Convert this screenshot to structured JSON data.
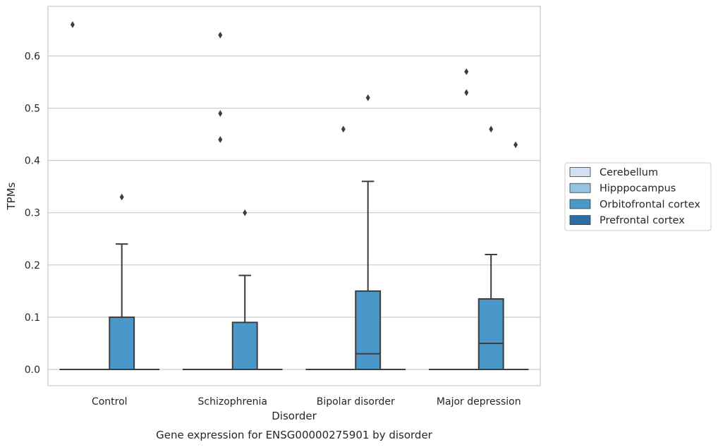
{
  "chart_data": {
    "type": "box",
    "title": "Gene expression for ENSG00000275901 by disorder",
    "xlabel": "Disorder",
    "ylabel": "TPMs",
    "ylim": [
      -0.032,
      0.695
    ],
    "yticks": [
      "0.0",
      "0.1",
      "0.2",
      "0.3",
      "0.4",
      "0.5",
      "0.6"
    ],
    "ytick_values": [
      0,
      0.1,
      0.2,
      0.3,
      0.4,
      0.5,
      0.6
    ],
    "grid": true,
    "legend_position": "right",
    "categories": [
      "Control",
      "Schizophrenia",
      "Bipolar disorder",
      "Major depression"
    ],
    "series": [
      {
        "name": "Cerebellum",
        "color": "#d0e1f2",
        "boxes": [
          {
            "category": "Control",
            "q1": 0,
            "median": 0,
            "q3": 0,
            "whisker_low": 0,
            "whisker_high": 0,
            "outliers": [
              0.66
            ]
          },
          {
            "category": "Schizophrenia",
            "q1": 0,
            "median": 0,
            "q3": 0,
            "whisker_low": 0,
            "whisker_high": 0,
            "outliers": []
          },
          {
            "category": "Bipolar disorder",
            "q1": 0,
            "median": 0,
            "q3": 0,
            "whisker_low": 0,
            "whisker_high": 0,
            "outliers": []
          },
          {
            "category": "Major depression",
            "q1": 0,
            "median": 0,
            "q3": 0,
            "whisker_low": 0,
            "whisker_high": 0,
            "outliers": []
          }
        ]
      },
      {
        "name": "Hipppocampus",
        "color": "#94c4df",
        "boxes": [
          {
            "category": "Control",
            "q1": 0,
            "median": 0,
            "q3": 0,
            "whisker_low": 0,
            "whisker_high": 0,
            "outliers": []
          },
          {
            "category": "Schizophrenia",
            "q1": 0,
            "median": 0,
            "q3": 0,
            "whisker_low": 0,
            "whisker_high": 0,
            "outliers": [
              0.64,
              0.49,
              0.44
            ]
          },
          {
            "category": "Bipolar disorder",
            "q1": 0,
            "median": 0,
            "q3": 0,
            "whisker_low": 0,
            "whisker_high": 0,
            "outliers": [
              0.46
            ]
          },
          {
            "category": "Major depression",
            "q1": 0,
            "median": 0,
            "q3": 0,
            "whisker_low": 0,
            "whisker_high": 0,
            "outliers": [
              0.57,
              0.53
            ]
          }
        ]
      },
      {
        "name": "Orbitofrontal cortex",
        "color": "#4a98c9",
        "boxes": [
          {
            "category": "Control",
            "q1": 0,
            "median": 0,
            "q3": 0.1,
            "whisker_low": 0,
            "whisker_high": 0.24,
            "outliers": [
              0.33
            ]
          },
          {
            "category": "Schizophrenia",
            "q1": 0,
            "median": 0,
            "q3": 0.09,
            "whisker_low": 0,
            "whisker_high": 0.18,
            "outliers": [
              0.3
            ]
          },
          {
            "category": "Bipolar disorder",
            "q1": 0,
            "median": 0.03,
            "q3": 0.15,
            "whisker_low": 0,
            "whisker_high": 0.36,
            "outliers": [
              0.52
            ]
          },
          {
            "category": "Major depression",
            "q1": 0,
            "median": 0.05,
            "q3": 0.135,
            "whisker_low": 0,
            "whisker_high": 0.22,
            "outliers": [
              0.46
            ]
          }
        ]
      },
      {
        "name": "Prefrontal cortex",
        "color": "#2e6da4",
        "boxes": [
          {
            "category": "Control",
            "q1": 0,
            "median": 0,
            "q3": 0,
            "whisker_low": 0,
            "whisker_high": 0,
            "outliers": []
          },
          {
            "category": "Schizophrenia",
            "q1": 0,
            "median": 0,
            "q3": 0,
            "whisker_low": 0,
            "whisker_high": 0,
            "outliers": []
          },
          {
            "category": "Bipolar disorder",
            "q1": 0,
            "median": 0,
            "q3": 0,
            "whisker_low": 0,
            "whisker_high": 0,
            "outliers": []
          },
          {
            "category": "Major depression",
            "q1": 0,
            "median": 0,
            "q3": 0,
            "whisker_low": 0,
            "whisker_high": 0,
            "outliers": [
              0.43
            ]
          }
        ]
      }
    ]
  }
}
